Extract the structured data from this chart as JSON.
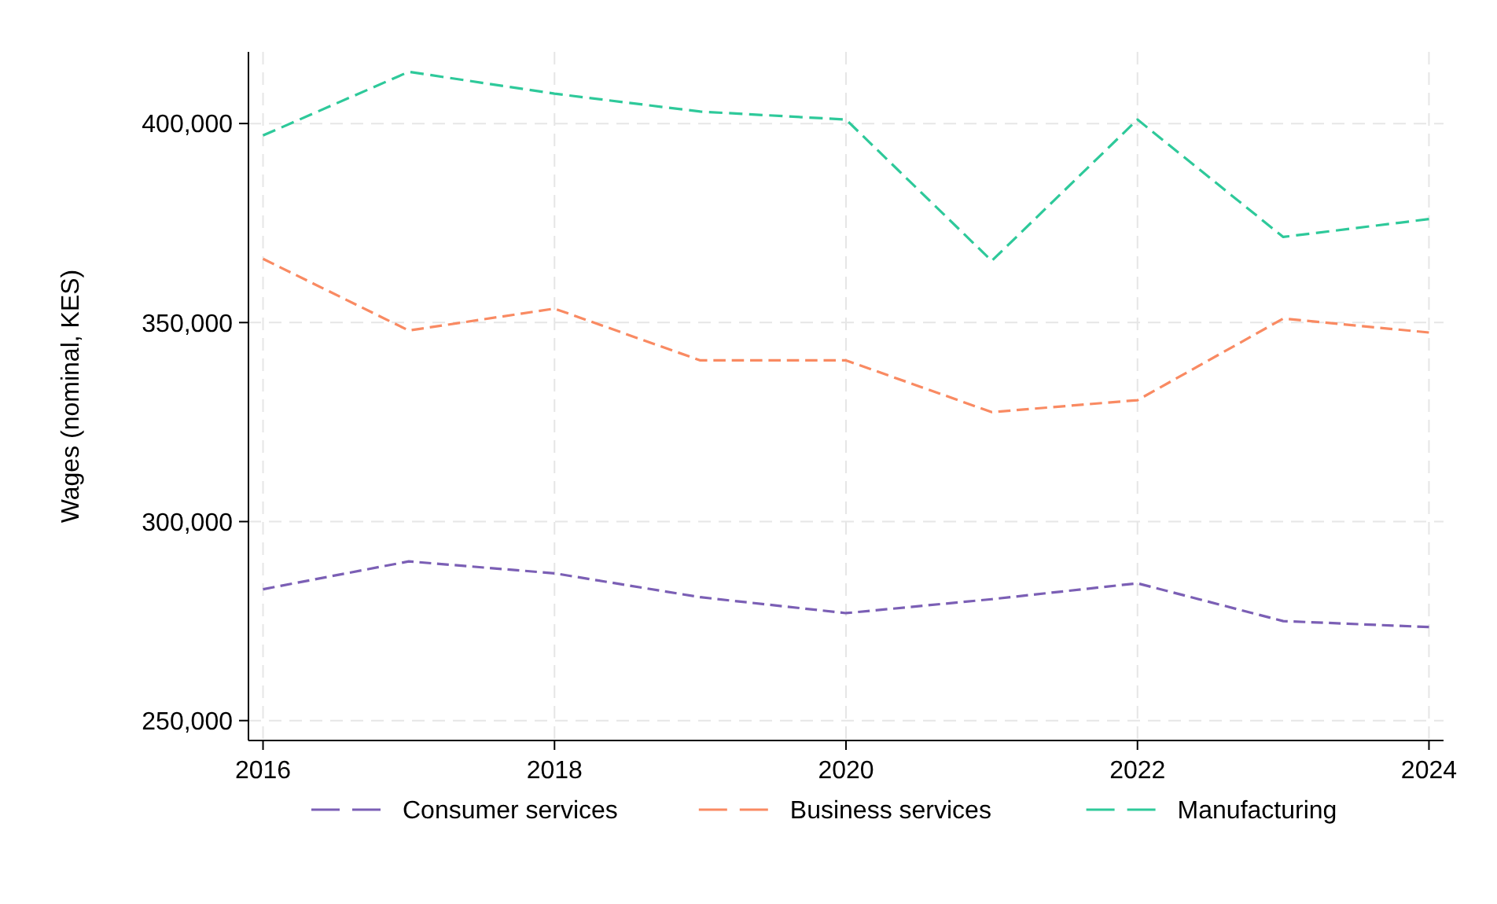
{
  "chart_data": {
    "type": "line",
    "ylabel": "Wages (nominal, KES)",
    "x": [
      2016,
      2017,
      2018,
      2019,
      2020,
      2021,
      2022,
      2023,
      2024
    ],
    "xlim": [
      2015.9,
      2024.1
    ],
    "xticks": [
      2016,
      2018,
      2020,
      2022,
      2024
    ],
    "ylim": [
      245000,
      418000
    ],
    "yticks": [
      {
        "value": 250000,
        "label": "250,000"
      },
      {
        "value": 300000,
        "label": "300,000"
      },
      {
        "value": 350000,
        "label": "350,000"
      },
      {
        "value": 400000,
        "label": "400,000"
      }
    ],
    "grid": true,
    "legend": "bottom",
    "line_style": "dashed",
    "marker": "none",
    "series": [
      {
        "name": "Consumer services",
        "color": "#7b5fb5",
        "values": [
          283000,
          290000,
          287000,
          281000,
          277000,
          280500,
          284500,
          275000,
          273500
        ]
      },
      {
        "name": "Business services",
        "color": "#f98a62",
        "values": [
          366000,
          348000,
          353500,
          340500,
          340500,
          327500,
          330500,
          351000,
          347500
        ]
      },
      {
        "name": "Manufacturing",
        "color": "#2ec99a",
        "values": [
          397000,
          413000,
          407500,
          403000,
          401000,
          365500,
          401000,
          371500,
          376000
        ]
      }
    ]
  }
}
